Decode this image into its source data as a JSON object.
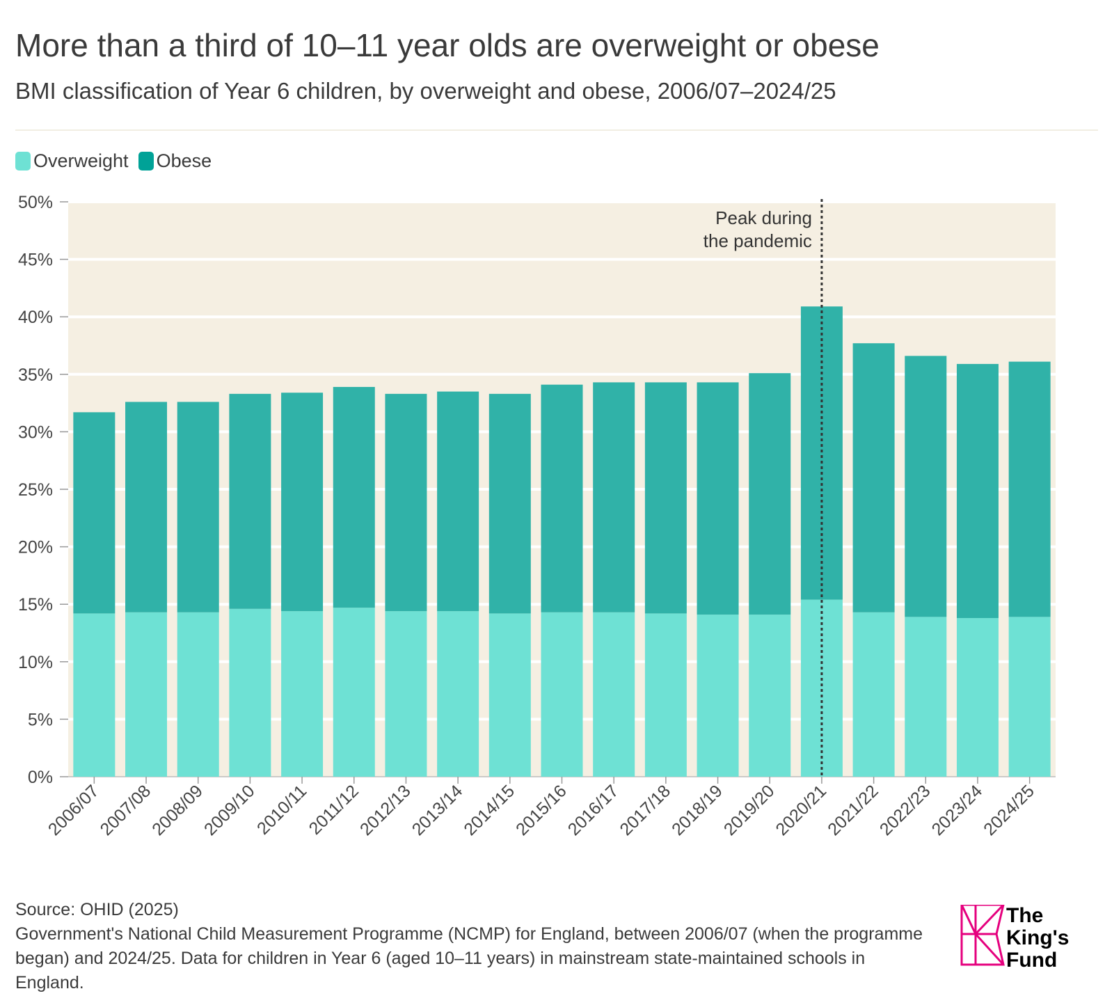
{
  "header": {
    "title": "More than a third of 10–11 year olds are overweight or obese",
    "subtitle": "BMI classification of Year 6 children, by overweight and obese, 2006/07–2024/25"
  },
  "colors": {
    "overweight": "#6ee1d4",
    "obese": "#30b2a8",
    "background": "#f5efe2",
    "grid": "#ffffff",
    "annotation": "#333333"
  },
  "chart_data": {
    "type": "bar",
    "stacked": true,
    "categories": [
      "2006/07",
      "2007/08",
      "2008/09",
      "2009/10",
      "2010/11",
      "2011/12",
      "2012/13",
      "2013/14",
      "2014/15",
      "2015/16",
      "2016/17",
      "2017/18",
      "2018/19",
      "2019/20",
      "2020/21",
      "2021/22",
      "2022/23",
      "2023/24",
      "2024/25"
    ],
    "series": [
      {
        "name": "Overweight",
        "values": [
          14.2,
          14.3,
          14.3,
          14.6,
          14.4,
          14.7,
          14.4,
          14.4,
          14.2,
          14.3,
          14.3,
          14.2,
          14.1,
          14.1,
          15.4,
          14.3,
          13.9,
          13.8,
          13.9
        ]
      },
      {
        "name": "Obese",
        "values": [
          17.5,
          18.3,
          18.3,
          18.7,
          19.0,
          19.2,
          18.9,
          19.1,
          19.1,
          19.8,
          20.0,
          20.1,
          20.2,
          21.0,
          25.5,
          23.4,
          22.7,
          22.1,
          22.2
        ]
      }
    ],
    "ylim": [
      0,
      50
    ],
    "yticks": [
      0,
      5,
      10,
      15,
      20,
      25,
      30,
      35,
      40,
      45,
      50
    ],
    "ytick_labels": [
      "0%",
      "5%",
      "10%",
      "15%",
      "20%",
      "25%",
      "30%",
      "35%",
      "40%",
      "45%",
      "50%"
    ],
    "grid": true,
    "legend": "top-left",
    "annotation": {
      "category": "2020/21",
      "lines": [
        "Peak during",
        "the pandemic"
      ]
    }
  },
  "footer": {
    "source": "Source: OHID (2025)",
    "note": "Government's National Child Measurement Programme (NCMP) for England, between 2006/07 (when the programme began) and 2024/25. Data for children in Year 6 (aged 10–11 years) in mainstream state-maintained schools in England."
  },
  "logo": {
    "line1": "The",
    "line2": "King's",
    "line3": "Fund"
  }
}
